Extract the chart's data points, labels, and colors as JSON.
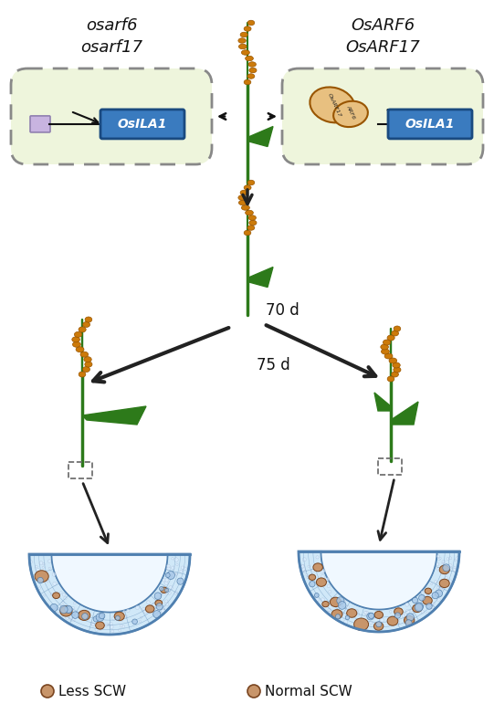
{
  "bg_color": "#ffffff",
  "left_label_line1": "osarf6",
  "left_label_line2": "osarf17",
  "right_label_line1": "OsARF6",
  "right_label_line2": "OsARF17",
  "box_fill": "#eef5dc",
  "box_stroke": "#888888",
  "osila1_fill": "#3a7bbf",
  "osila1_text": "OsILA1",
  "osila1_text_color": "#ffffff",
  "promoter_fill": "#c8b4e0",
  "protein_fill": "#e8c080",
  "arrow_color": "#111111",
  "time1": "70 d",
  "time2": "75 d",
  "stem_color": "#2d7a1a",
  "grain_color": "#cc7a0a",
  "grain_edge": "#995500",
  "cross_section_fill": "#d0e8f8",
  "cross_section_stroke": "#5080b0",
  "cross_inner_fill": "#f0f8ff",
  "scw_fill": "#c8956a",
  "scw_edge": "#7a4520",
  "blue_cell_fill": "#a8c8e8",
  "blue_cell_edge": "#4070a0",
  "small_cell_fill": "#ddeeff",
  "small_cell_edge": "#8899bb",
  "legend_left": "Less SCW",
  "legend_right": "Normal SCW",
  "text_color": "#111111",
  "dashed_box_color": "#666666"
}
